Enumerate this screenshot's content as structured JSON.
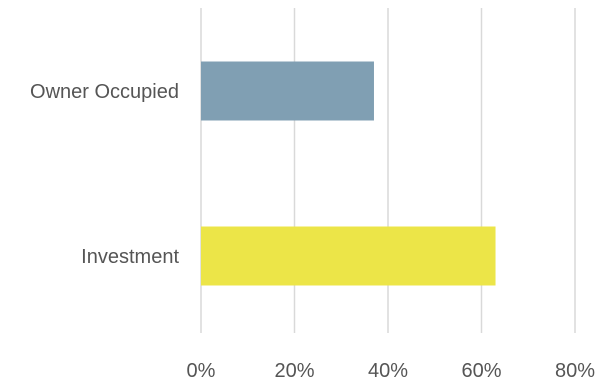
{
  "chart_data": {
    "type": "bar",
    "orientation": "horizontal",
    "categories": [
      "Owner Occupied",
      "Investment"
    ],
    "values": [
      37,
      63
    ],
    "colors": [
      "#809fb3",
      "#ece548"
    ],
    "unit": "%",
    "xlim": [
      0,
      80
    ],
    "ticks": [
      0,
      20,
      40,
      60,
      80
    ],
    "tick_labels": [
      "0%",
      "20%",
      "40%",
      "60%",
      "80%"
    ],
    "grid": "vertical",
    "legend": "none"
  }
}
